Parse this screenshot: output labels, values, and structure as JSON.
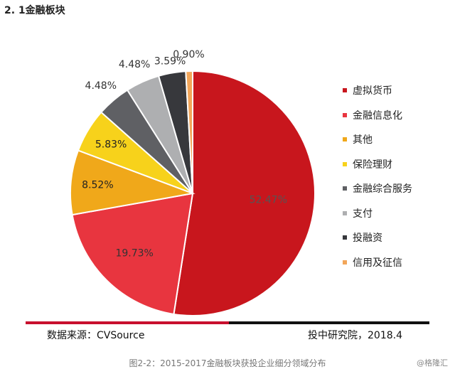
{
  "section_title": "2. 1金融板块",
  "footer": {
    "source": "数据来源：CVSource",
    "publisher": "投中研究院，2018.4"
  },
  "caption": "图2-2：2015-2017金融板块获投企业细分领域分布",
  "watermark": "@格隆汇",
  "chart_data": {
    "type": "pie",
    "title": "",
    "legend_position": "right",
    "start_angle_deg": 0,
    "direction": "clockwise",
    "series": [
      {
        "name": "虚拟货币",
        "value": 52.47,
        "label": "52.47%",
        "color": "#c8161d"
      },
      {
        "name": "金融信息化",
        "value": 19.73,
        "label": "19.73%",
        "color": "#e8353f"
      },
      {
        "name": "其他",
        "value": 8.52,
        "label": "8.52%",
        "color": "#f0a81a"
      },
      {
        "name": "保险理财",
        "value": 5.83,
        "label": "5.83%",
        "color": "#f7d21b"
      },
      {
        "name": "金融综合服务",
        "value": 4.48,
        "label": "4.48%",
        "color": "#5f6064"
      },
      {
        "name": "支付",
        "value": 4.48,
        "label": "4.48%",
        "color": "#aeafb1"
      },
      {
        "name": "投融资",
        "value": 3.59,
        "label": "3.59%",
        "color": "#37383c"
      },
      {
        "name": "信用及征信",
        "value": 0.9,
        "label": "0.90%",
        "color": "#f2a65a"
      }
    ]
  }
}
